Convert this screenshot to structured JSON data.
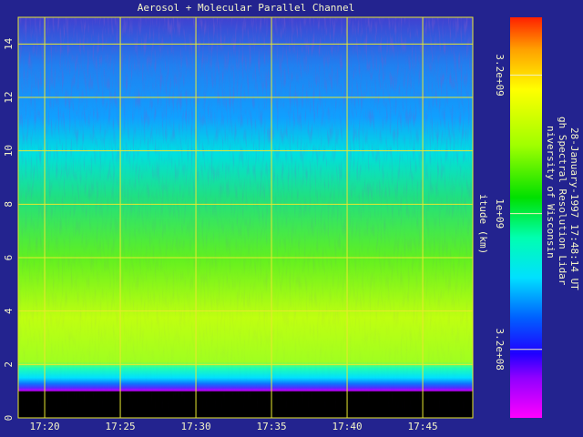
{
  "chart_data": {
    "type": "image",
    "title": "Aerosol + Molecular Parallel Channel",
    "ylabel": "itude (km)",
    "xlim": [
      18.25,
      48.31
    ],
    "xticks": [
      {
        "value": 20,
        "label": "17:20"
      },
      {
        "value": 25,
        "label": "17:25"
      },
      {
        "value": 30,
        "label": "17:30"
      },
      {
        "value": 35,
        "label": "17:35"
      },
      {
        "value": 40,
        "label": "17:40"
      },
      {
        "value": 45,
        "label": "17:45"
      }
    ],
    "ylim": [
      0,
      15
    ],
    "yticks": [
      0,
      2,
      4,
      6,
      8,
      10,
      12,
      14
    ],
    "grid": true,
    "colorbar": {
      "log": true,
      "lim": [
        180000000,
        5200000000
      ],
      "ticks": [
        {
          "value": 320000000,
          "label": "3.2e+08"
        },
        {
          "value": 1000000000,
          "label": "1e+09"
        },
        {
          "value": 3200000000,
          "label": "3.2e+09"
        }
      ]
    },
    "annotations": [
      "niversity of Wisconsin",
      "gh Spectral Resolution Lidar",
      "28-January-1997 17:48:14 UT"
    ]
  }
}
